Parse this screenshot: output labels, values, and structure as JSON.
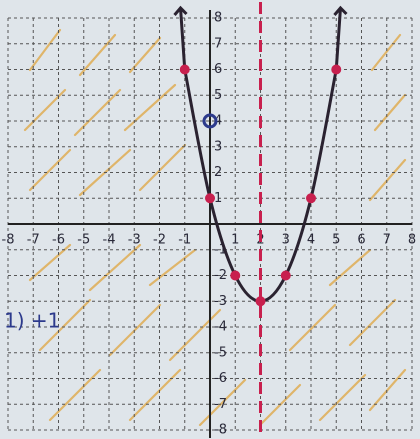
{
  "chart_data": {
    "type": "line",
    "x": [
      -1,
      0,
      1,
      2,
      3,
      4,
      5
    ],
    "series": [
      {
        "color": "#2a2230",
        "values": [
          6,
          1,
          -2,
          -3,
          -2,
          1,
          6
        ]
      }
    ],
    "marker_color": "#c8204e",
    "open_point": {
      "x": 0,
      "y": 4,
      "color": "#2c3a8c"
    },
    "axis_of_symmetry": {
      "x": 2,
      "color": "#c8204e"
    },
    "annotation": "1) +1",
    "xlim": [
      -8,
      8
    ],
    "ylim": [
      -8,
      8
    ],
    "xticks": [
      -8,
      -7,
      -6,
      -5,
      -4,
      -3,
      -2,
      -1,
      1,
      2,
      3,
      4,
      5,
      6,
      7,
      8
    ],
    "yticks": [
      -8,
      -7,
      -6,
      -5,
      -4,
      -3,
      -2,
      -1,
      1,
      2,
      3,
      4,
      5,
      6,
      7,
      8
    ],
    "grid": true
  }
}
